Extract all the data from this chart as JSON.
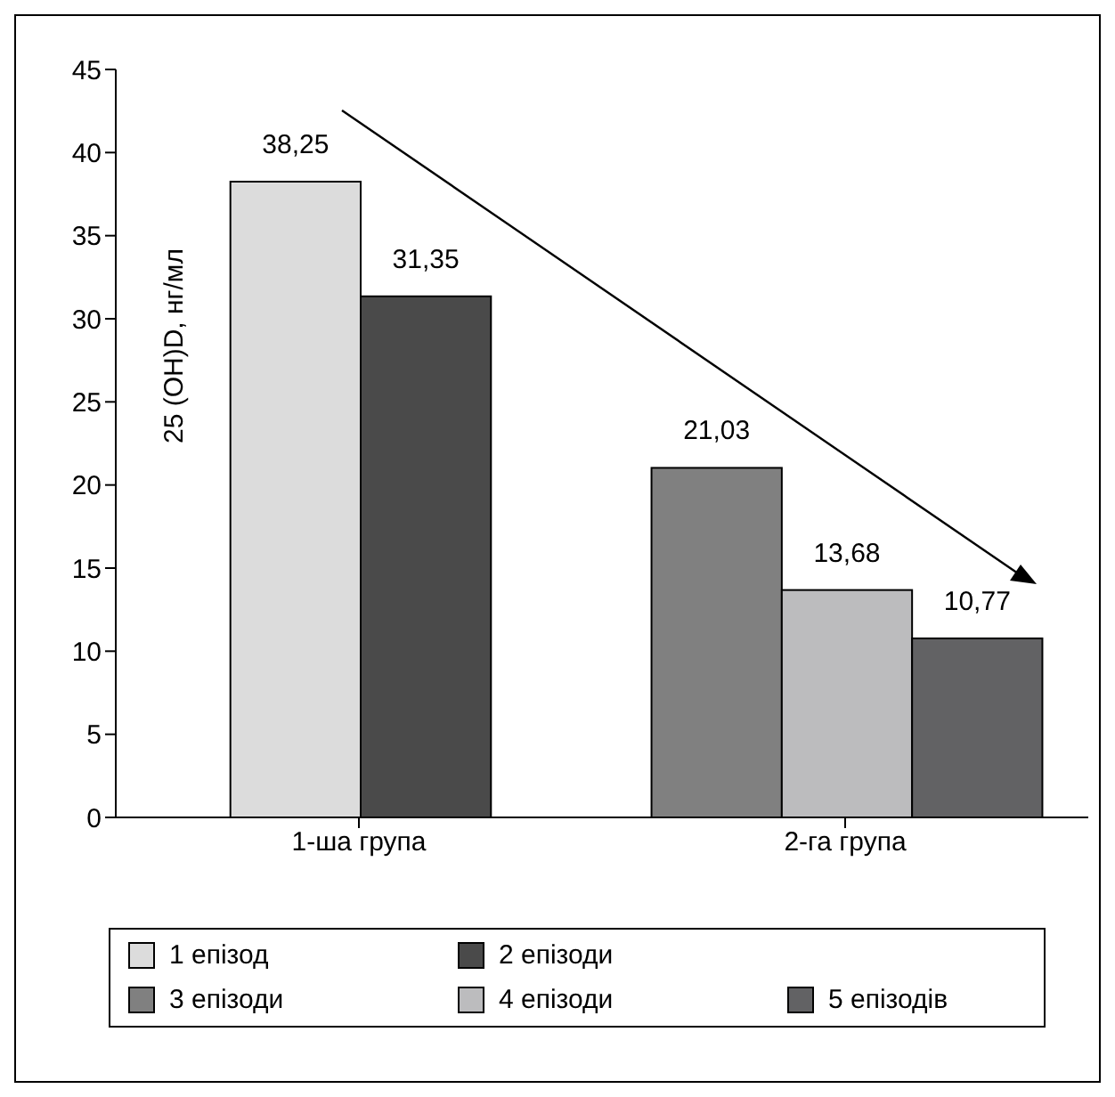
{
  "chart_data": {
    "type": "bar",
    "ylabel": "25 (OH)D, нг/мл",
    "categories": [
      "1-ша група",
      "2-га група"
    ],
    "series": [
      {
        "name": "1 епізод",
        "color": "#dcdcdc",
        "values": [
          38.25,
          null
        ],
        "value_labels": [
          "38,25",
          null
        ]
      },
      {
        "name": "2 епізоди",
        "color": "#4a4a4a",
        "values": [
          31.35,
          null
        ],
        "value_labels": [
          "31,35",
          null
        ]
      },
      {
        "name": "3 епізоди",
        "color": "#808080",
        "values": [
          null,
          21.03
        ],
        "value_labels": [
          null,
          "21,03"
        ]
      },
      {
        "name": "4 епізоди",
        "color": "#bcbcbe",
        "values": [
          null,
          13.68
        ],
        "value_labels": [
          null,
          "13,68"
        ]
      },
      {
        "name": "5 епізодів",
        "color": "#626264",
        "values": [
          null,
          10.77
        ],
        "value_labels": [
          null,
          "10,77"
        ]
      }
    ],
    "ylim": [
      0,
      45
    ],
    "yticks": [
      0,
      5,
      10,
      15,
      20,
      25,
      30,
      35,
      40,
      45
    ],
    "grid": false,
    "legend": "bottom"
  }
}
